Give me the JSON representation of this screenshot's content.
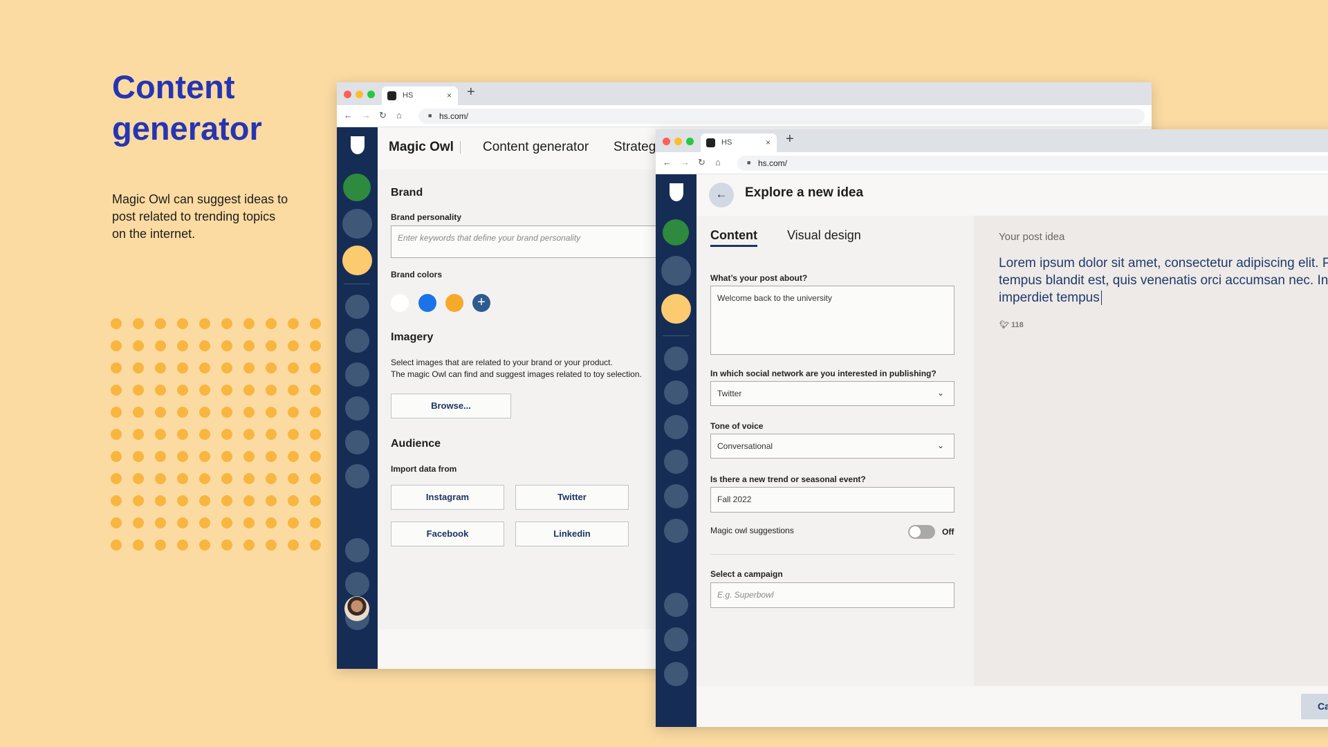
{
  "hero": {
    "title_line1": "Content",
    "title_line2": "generator",
    "description": "Magic Owl can suggest ideas to post related to trending topics on the internet."
  },
  "colors": {
    "accent": "#2535b4",
    "sidebar": "#152d55",
    "dots": "#f8b640",
    "green": "#2d8a3e",
    "yellow": "#fcca6f",
    "blue": "#1a73e8",
    "orange": "#f7a928"
  },
  "browser": {
    "tab_title": "HS",
    "url": "hs.com/",
    "close_icon": "×",
    "new_tab_icon": "+"
  },
  "window1": {
    "app_name": "Magic Owl",
    "nav": [
      "Content generator",
      "Strategy"
    ],
    "brand": {
      "heading": "Brand",
      "personality_label": "Brand personality",
      "personality_placeholder": "Enter keywords that define your brand personality",
      "colors_label": "Brand colors",
      "add_icon": "+"
    },
    "imagery": {
      "heading": "Imagery",
      "description_line1": "Select images that are related to your brand or your product.",
      "description_line2": "The magic Owl can find and suggest images related to toy selection.",
      "browse_label": "Browse..."
    },
    "audience": {
      "heading": "Audience",
      "import_label": "Import data from",
      "sources": [
        "Instagram",
        "Twitter",
        "Facebook",
        "Linkedin"
      ]
    }
  },
  "window2": {
    "title": "Explore a new idea",
    "tabs": [
      "Content",
      "Visual design"
    ],
    "post_about": {
      "label": "What’s your post about?",
      "value": "Welcome back to the university"
    },
    "network": {
      "label": "In which social network are you interested in publishing?",
      "value": "Twitter"
    },
    "tone": {
      "label": "Tone of voice",
      "value": "Conversational"
    },
    "trend": {
      "label": "Is there a new trend or seasonal event?",
      "value": "Fall 2022"
    },
    "suggestions": {
      "label": "Magic owl suggestions",
      "state": "Off",
      "enabled": false
    },
    "campaign": {
      "label": "Select a campaign",
      "placeholder": "E.g. Superbowl"
    },
    "preview": {
      "label": "Your post idea",
      "text_line1": "Lorem ipsum dolor sit amet, consectetur adipiscing elit. P",
      "text_line2": "tempus blandit est, quis venenatis orci accumsan nec. In v",
      "text_line3": "imperdiet tempus",
      "char_count": "118"
    },
    "footer_button": "Ca"
  }
}
